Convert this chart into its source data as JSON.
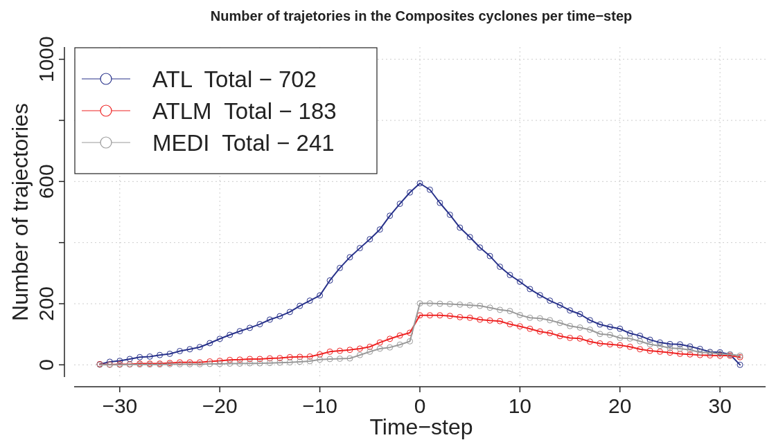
{
  "chart_data": {
    "type": "line",
    "title": "Number of trajetories in the Composites cyclones per time−step",
    "xlabel": "Time−step",
    "ylabel": "Number of trajectories",
    "x": [
      -32,
      -31,
      -30,
      -29,
      -28,
      -27,
      -26,
      -25,
      -24,
      -23,
      -22,
      -21,
      -20,
      -19,
      -18,
      -17,
      -16,
      -15,
      -14,
      -13,
      -12,
      -11,
      -10,
      -9,
      -8,
      -7,
      -6,
      -5,
      -4,
      -3,
      -2,
      -1,
      0,
      1,
      2,
      3,
      4,
      5,
      6,
      7,
      8,
      9,
      10,
      11,
      12,
      13,
      14,
      15,
      16,
      17,
      18,
      19,
      20,
      21,
      22,
      23,
      24,
      25,
      26,
      27,
      28,
      29,
      30,
      31,
      32
    ],
    "series": [
      {
        "name": "ATL  Total − 702",
        "color": "#27318a",
        "values": [
          2,
          10,
          13,
          19,
          25,
          27,
          32,
          36,
          45,
          51,
          58,
          71,
          85,
          98,
          110,
          121,
          133,
          148,
          159,
          173,
          193,
          210,
          227,
          276,
          317,
          352,
          382,
          411,
          443,
          488,
          527,
          564,
          594,
          573,
          530,
          491,
          449,
          418,
          384,
          356,
          321,
          294,
          272,
          248,
          228,
          210,
          195,
          178,
          166,
          146,
          132,
          124,
          118,
          103,
          95,
          82,
          73,
          68,
          67,
          60,
          52,
          42,
          41,
          34,
          0
        ]
      },
      {
        "name": "ATLM  Total − 183",
        "color": "#ee2222",
        "values": [
          2,
          1,
          2,
          2,
          4,
          4,
          4,
          6,
          8,
          8,
          8,
          11,
          13,
          16,
          17,
          19,
          19,
          21,
          22,
          25,
          26,
          27,
          34,
          43,
          46,
          49,
          53,
          59,
          73,
          85,
          96,
          105,
          162,
          162,
          162,
          160,
          156,
          154,
          148,
          145,
          143,
          133,
          126,
          118,
          109,
          104,
          94,
          88,
          86,
          76,
          70,
          67,
          64,
          59,
          51,
          46,
          43,
          40,
          36,
          34,
          32,
          31,
          30,
          30,
          25
        ]
      },
      {
        "name": "MEDI  Total − 241",
        "color": "#999999",
        "values": [
          0,
          0,
          0,
          1,
          1,
          1,
          1,
          2,
          2,
          2,
          2,
          3,
          3,
          4,
          4,
          5,
          5,
          6,
          7,
          8,
          10,
          12,
          17,
          19,
          20,
          21,
          32,
          43,
          53,
          57,
          66,
          77,
          201,
          201,
          200,
          199,
          197,
          195,
          193,
          187,
          180,
          176,
          163,
          154,
          152,
          146,
          137,
          127,
          122,
          115,
          101,
          98,
          88,
          86,
          77,
          67,
          62,
          55,
          53,
          49,
          41,
          40,
          36,
          34,
          30
        ]
      }
    ],
    "xlim": [
      -34.56,
      34.56
    ],
    "ylim": [
      -40,
      1040
    ],
    "xticks": [
      {
        "value": -30,
        "label": "−30"
      },
      {
        "value": -20,
        "label": "−20"
      },
      {
        "value": -10,
        "label": "−10"
      },
      0,
      10,
      20,
      30
    ],
    "yticks": [
      0,
      200,
      {
        "value": 400,
        "label": null
      },
      600,
      {
        "value": 800,
        "label": null
      },
      1000
    ],
    "grid": true,
    "legend": "top left",
    "marker": "circle",
    "line_style": "solid"
  }
}
